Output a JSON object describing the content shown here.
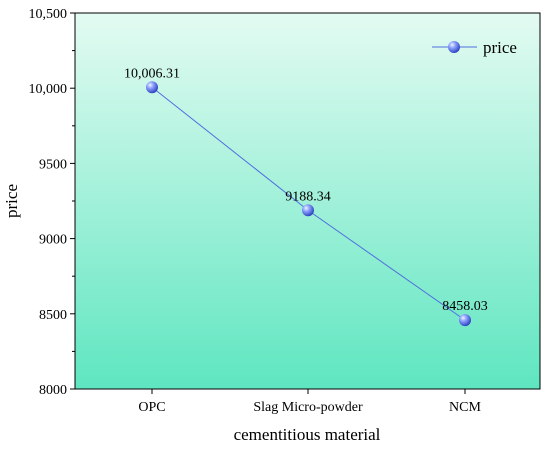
{
  "chart_data": {
    "type": "line",
    "title": "",
    "xlabel": "cementitious material",
    "ylabel": "price",
    "categories": [
      "OPC",
      "Slag Micro-powder",
      "NCM"
    ],
    "series": [
      {
        "name": "price",
        "values": [
          10006.31,
          9188.34,
          8458.03
        ],
        "data_labels": [
          "10,006.31",
          "9188.34",
          "8458.03"
        ],
        "color": "#4f6fe0"
      }
    ],
    "ylim": [
      8000,
      10500
    ],
    "yticks": [
      8000,
      8500,
      9000,
      9500,
      10000,
      10500
    ],
    "ytick_labels": [
      "8000",
      "8500",
      "9000",
      "9500",
      "10,000",
      "10,500"
    ],
    "grid": false,
    "legend_position": "top-right",
    "background_gradient": [
      "#e4fbf2",
      "#5ee6c0"
    ]
  }
}
